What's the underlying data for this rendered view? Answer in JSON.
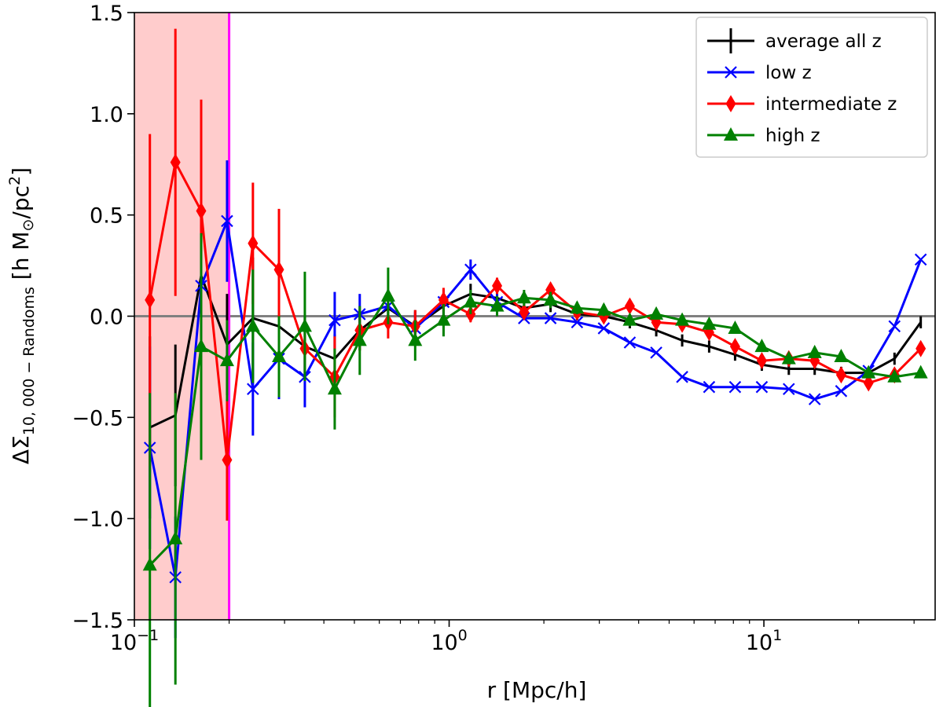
{
  "chart_data": {
    "type": "line",
    "xscale": "log",
    "xlim": [
      0.1,
      35
    ],
    "ylim": [
      -1.5,
      1.5
    ],
    "xlabel": "r [Mpc/h]",
    "ylabel": {
      "prefix": "ΔΣ",
      "subscript": "10, 000 − Randoms",
      "unit_open": " [h M",
      "unit_sun": "⊙",
      "unit_mid": "/pc",
      "unit_sup": "2",
      "unit_close": "]"
    },
    "xticks": [
      {
        "value": 0.1,
        "base": "10",
        "exp": "−1"
      },
      {
        "value": 1,
        "base": "10",
        "exp": "0"
      },
      {
        "value": 10,
        "base": "10",
        "exp": "1"
      }
    ],
    "yticks": [
      {
        "value": -1.5,
        "label": "−1.5"
      },
      {
        "value": -1.0,
        "label": "−1.0"
      },
      {
        "value": -0.5,
        "label": "−0.5"
      },
      {
        "value": 0.0,
        "label": "0.0"
      },
      {
        "value": 0.5,
        "label": "0.5"
      },
      {
        "value": 1.0,
        "label": "1.0"
      },
      {
        "value": 1.5,
        "label": "1.5"
      }
    ],
    "shaded_region": {
      "x0": 0.1,
      "x1": 0.2,
      "color": "#ffcccc"
    },
    "vertical_line": {
      "x": 0.2,
      "color": "#ff00ff"
    },
    "zero_line": {
      "y": 0,
      "color": "#808080"
    },
    "x": [
      0.112,
      0.135,
      0.163,
      0.197,
      0.238,
      0.288,
      0.348,
      0.433,
      0.52,
      0.64,
      0.78,
      0.96,
      1.17,
      1.42,
      1.73,
      2.1,
      2.55,
      3.1,
      3.75,
      4.55,
      5.5,
      6.7,
      8.1,
      9.85,
      12.0,
      14.5,
      17.6,
      21.5,
      26.0,
      31.5
    ],
    "series": [
      {
        "name": "average all z",
        "color": "#000000",
        "marker": "none",
        "values": [
          -0.55,
          -0.49,
          0.2,
          -0.14,
          -0.01,
          -0.05,
          -0.15,
          -0.21,
          -0.07,
          0.04,
          -0.05,
          0.05,
          0.11,
          0.09,
          0.04,
          0.06,
          0.01,
          0.0,
          -0.03,
          -0.07,
          -0.12,
          -0.15,
          -0.19,
          -0.24,
          -0.26,
          -0.26,
          -0.28,
          -0.28,
          -0.21,
          -0.03
        ],
        "errors": [
          0.45,
          0.35,
          0.3,
          0.25,
          0.3,
          0.2,
          0.15,
          0.12,
          0.1,
          0.08,
          0.08,
          0.06,
          0.05,
          0.04,
          0.04,
          0.04,
          0.03,
          0.03,
          0.03,
          0.03,
          0.03,
          0.03,
          0.03,
          0.03,
          0.03,
          0.03,
          0.03,
          0.03,
          0.03,
          0.03
        ]
      },
      {
        "name": "low z",
        "color": "#0000ff",
        "marker": "x",
        "values": [
          -0.65,
          -1.29,
          0.15,
          0.47,
          -0.36,
          -0.21,
          -0.3,
          -0.02,
          0.01,
          0.05,
          -0.06,
          0.07,
          0.23,
          0.07,
          -0.01,
          -0.01,
          -0.03,
          -0.06,
          -0.13,
          -0.18,
          -0.3,
          -0.35,
          -0.35,
          -0.35,
          -0.36,
          -0.41,
          -0.37,
          -0.27,
          -0.05,
          0.28
        ],
        "errors": [
          0.5,
          0.3,
          0.3,
          0.3,
          0.23,
          0.2,
          0.15,
          0.14,
          0.1,
          0.08,
          0.08,
          0.06,
          0.05,
          0.04,
          0.0,
          0.0,
          0.0,
          0.0,
          0.0,
          0.0,
          0.0,
          0.0,
          0.0,
          0.0,
          0.0,
          0.0,
          0.0,
          0.0,
          0.0,
          0.0
        ]
      },
      {
        "name": "intermediate z",
        "color": "#ff0000",
        "marker": "diamond",
        "values": [
          0.08,
          0.76,
          0.52,
          -0.71,
          0.36,
          0.23,
          -0.16,
          -0.3,
          -0.07,
          -0.03,
          -0.05,
          0.08,
          0.01,
          0.15,
          0.02,
          0.13,
          0.02,
          0.0,
          0.05,
          -0.03,
          -0.04,
          -0.08,
          -0.15,
          -0.22,
          -0.21,
          -0.22,
          -0.29,
          -0.33,
          -0.29,
          -0.16
        ],
        "errors": [
          0.82,
          0.66,
          0.55,
          0.3,
          0.3,
          0.3,
          0.15,
          0.2,
          0.1,
          0.08,
          0.08,
          0.06,
          0.04,
          0.04,
          0.03,
          0.03,
          0.0,
          0.0,
          0.0,
          0.0,
          0.0,
          0.0,
          0.0,
          0.0,
          0.0,
          0.0,
          0.0,
          0.0,
          0.0,
          0.0
        ]
      },
      {
        "name": "high z",
        "color": "#008000",
        "marker": "triangle",
        "values": [
          -1.23,
          -1.1,
          -0.15,
          -0.22,
          -0.05,
          -0.2,
          -0.05,
          -0.36,
          -0.12,
          0.1,
          -0.12,
          -0.02,
          0.07,
          0.05,
          0.09,
          0.08,
          0.04,
          0.03,
          -0.02,
          0.01,
          -0.02,
          -0.04,
          -0.06,
          -0.15,
          -0.21,
          -0.18,
          -0.2,
          -0.28,
          -0.3,
          -0.28
        ],
        "errors": [
          0.85,
          0.72,
          0.56,
          0.2,
          0.28,
          0.2,
          0.27,
          0.2,
          0.17,
          0.14,
          0.1,
          0.08,
          0.06,
          0.05,
          0.04,
          0.04,
          0.03,
          0.03,
          0.03,
          0.0,
          0.0,
          0.0,
          0.0,
          0.0,
          0.0,
          0.0,
          0.0,
          0.0,
          0.0,
          0.0
        ]
      }
    ],
    "legend": {
      "position": "top-right"
    }
  }
}
